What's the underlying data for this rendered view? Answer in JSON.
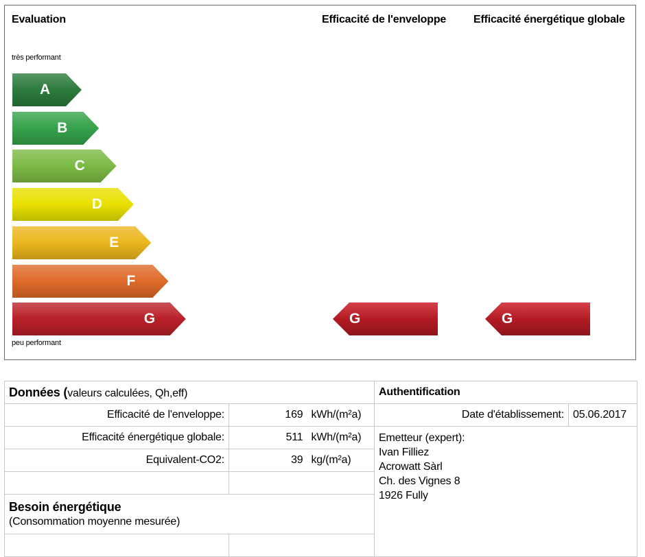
{
  "evaluation": {
    "title": "Evaluation",
    "col_envelope": "Efficacité de l'enveloppe",
    "col_global": "Efficacité énergétique globale",
    "top_label": "très performant",
    "bottom_label": "peu performant",
    "classes": [
      {
        "letter": "A",
        "color": "#2b7a3c"
      },
      {
        "letter": "B",
        "color": "#35a24a"
      },
      {
        "letter": "C",
        "color": "#7cba44"
      },
      {
        "letter": "D",
        "color": "#e8e000"
      },
      {
        "letter": "E",
        "color": "#ecb61f"
      },
      {
        "letter": "F",
        "color": "#df6a2a"
      },
      {
        "letter": "G",
        "color": "#b82028"
      }
    ],
    "envelope_class": "G",
    "global_class": "G"
  },
  "donnees": {
    "title_bold": "Données (",
    "title_rest": "valeurs calculées, Qh,eff)",
    "rows": [
      {
        "label": "Efficacité de l'enveloppe:",
        "value": "169",
        "unit": "kWh/(m²a)"
      },
      {
        "label": "Efficacité énergétique globale:",
        "value": "511",
        "unit": "kWh/(m²a)"
      },
      {
        "label": "Equivalent-CO2:",
        "value": "39",
        "unit": "kg/(m²a)"
      }
    ]
  },
  "besoin": {
    "title": "Besoin énergétique",
    "subtitle": "(Consommation moyenne mesurée)"
  },
  "auth": {
    "title": "Authentification",
    "date_label": "Date d'établissement:",
    "date_value": "05.06.2017",
    "emitter_lines": [
      "Emetteur (expert):",
      "Ivan Filliez",
      "Acrowatt Sàrl",
      "Ch. des Vignes 8",
      "1926 Fully"
    ]
  }
}
